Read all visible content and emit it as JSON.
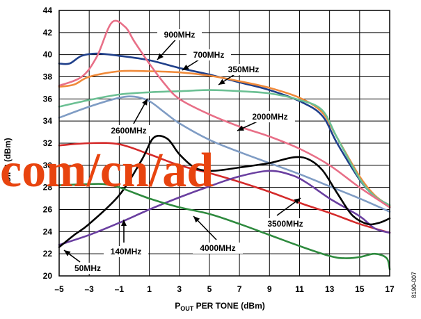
{
  "chart_data": {
    "type": "line",
    "title": "",
    "xlabel_main": "P",
    "xlabel_sub": "OUT",
    "xlabel_rest": " PER TONE (dBm)",
    "ylabel": "OIP3 (dBm)",
    "xlim": [
      -5,
      17
    ],
    "ylim": [
      20,
      44
    ],
    "x_ticks": [
      "-5",
      "-3",
      "-1",
      "1",
      "3",
      "5",
      "7",
      "9",
      "11",
      "13",
      "15",
      "17"
    ],
    "x_tick_values": [
      -5,
      -3,
      -1,
      1,
      3,
      5,
      7,
      9,
      11,
      13,
      15,
      17
    ],
    "y_ticks": [
      "20",
      "22",
      "24",
      "26",
      "28",
      "30",
      "32",
      "34",
      "36",
      "38",
      "40",
      "42",
      "44"
    ],
    "y_tick_values": [
      20,
      22,
      24,
      26,
      28,
      30,
      32,
      34,
      36,
      38,
      40,
      42,
      44
    ],
    "grid": true,
    "figure_id": "8190-007",
    "watermark": "com/cn/ad",
    "series": [
      {
        "label": "900MHz",
        "color": "#1f3f8a",
        "x": [
          -5,
          -4.3,
          -3.5,
          -2.5,
          -1,
          1,
          3,
          5,
          7,
          9,
          11,
          12.5,
          13.5,
          15,
          16,
          17
        ],
        "y": [
          39.2,
          39.2,
          39.9,
          40.1,
          39.9,
          39.5,
          38.8,
          38.2,
          37.5,
          36.8,
          35.8,
          34.5,
          32,
          28.7,
          27.2,
          26.2
        ]
      },
      {
        "label": "700MHz",
        "color": "#f08a3a",
        "x": [
          -5,
          -4,
          -3,
          -1,
          1,
          3,
          5,
          7,
          9,
          11,
          12.5,
          13.5,
          15,
          16,
          17
        ],
        "y": [
          37.1,
          37.3,
          38.0,
          38.5,
          38.5,
          38.4,
          38.1,
          37.6,
          37.0,
          36.1,
          34.8,
          32.5,
          29,
          27.3,
          26.3
        ]
      },
      {
        "label": "350MHz",
        "color": "#6cc094",
        "x": [
          -5,
          -3,
          -1,
          1,
          3,
          5,
          7,
          9,
          11,
          12.5,
          13.5,
          15,
          16,
          17
        ],
        "y": [
          35.3,
          35.9,
          36.4,
          36.6,
          36.7,
          36.8,
          36.7,
          36.5,
          35.9,
          35.0,
          32.5,
          28.8,
          27.2,
          26.4
        ]
      },
      {
        "label": "2000MHz",
        "color": "#e86f87",
        "x": [
          -5,
          -3.5,
          -2.5,
          -1.5,
          -0.6,
          0,
          1,
          2,
          3,
          5,
          7,
          9,
          11,
          13,
          15,
          17
        ],
        "y": [
          37.2,
          38,
          39.8,
          42.9,
          42.5,
          41.2,
          39.2,
          37.4,
          36.0,
          34.6,
          33.5,
          32.6,
          31.5,
          30.0,
          28.0,
          26.2
        ]
      },
      {
        "label": "2600MHz",
        "color": "#7f9cc4",
        "x": [
          -5,
          -3,
          -1,
          0,
          1,
          2,
          3,
          5,
          7,
          9,
          11,
          13,
          15,
          17
        ],
        "y": [
          34.3,
          35.3,
          36.1,
          36.2,
          35.8,
          34.8,
          33.8,
          32.3,
          31.2,
          30.2,
          29.2,
          28.1,
          27.0,
          25.8
        ]
      },
      {
        "label": "3500MHz",
        "color": "#d42a2a",
        "x": [
          -5,
          -3,
          -1,
          1,
          3,
          5,
          7,
          9,
          11,
          13,
          15,
          17
        ],
        "y": [
          31.8,
          32.0,
          31.9,
          31.0,
          30.0,
          29.3,
          28.5,
          27.6,
          26.6,
          25.7,
          24.7,
          23.9
        ]
      },
      {
        "label": "140MHz",
        "color": "#6a3fa0",
        "x": [
          -5,
          -3,
          -1,
          1,
          3,
          5,
          7,
          9,
          10.5,
          11.5,
          13,
          15,
          16,
          17
        ],
        "y": [
          22.8,
          23.7,
          24.8,
          26.0,
          27.1,
          28.1,
          29.0,
          29.5,
          29.1,
          28.4,
          27.0,
          25.4,
          24.3,
          23.9
        ]
      },
      {
        "label": "50MHz",
        "color": "#000000",
        "x": [
          -5,
          -4,
          -3,
          -1,
          0.5,
          1.3,
          2.2,
          3,
          4,
          5,
          6,
          7,
          9,
          10.5,
          11.5,
          12.5,
          13.5,
          14.5,
          15.5,
          16.3,
          17
        ],
        "y": [
          22.6,
          23.7,
          24.7,
          27.3,
          30.5,
          32.5,
          32.4,
          31.0,
          29.8,
          29.5,
          29.6,
          29.8,
          30.2,
          30.7,
          30.6,
          29.6,
          27.5,
          25.5,
          24.7,
          24.8,
          25.2
        ]
      },
      {
        "label": "4000MHz",
        "color": "#2e8a3e",
        "x": [
          -5,
          -3,
          -2,
          -1,
          1,
          3,
          5,
          7,
          9,
          11,
          13,
          14,
          15,
          16,
          16.8,
          17
        ],
        "y": [
          28.2,
          28.3,
          28.3,
          28.0,
          27.0,
          26.2,
          25.6,
          24.7,
          23.7,
          22.7,
          21.8,
          21.6,
          21.7,
          22.0,
          21.6,
          20.6
        ]
      }
    ],
    "annotations": [
      {
        "text": "900MHz",
        "series": "900MHz"
      },
      {
        "text": "700MHz",
        "series": "700MHz"
      },
      {
        "text": "350MHz",
        "series": "350MHz"
      },
      {
        "text": "2000MHz",
        "series": "2000MHz"
      },
      {
        "text": "2600MHz",
        "series": "2600MHz"
      },
      {
        "text": "3500MHz",
        "series": "3500MHz"
      },
      {
        "text": "140MHz",
        "series": "140MHz"
      },
      {
        "text": "4000MHz",
        "series": "4000MHz"
      },
      {
        "text": "50MHz",
        "series": "50MHz"
      }
    ]
  }
}
